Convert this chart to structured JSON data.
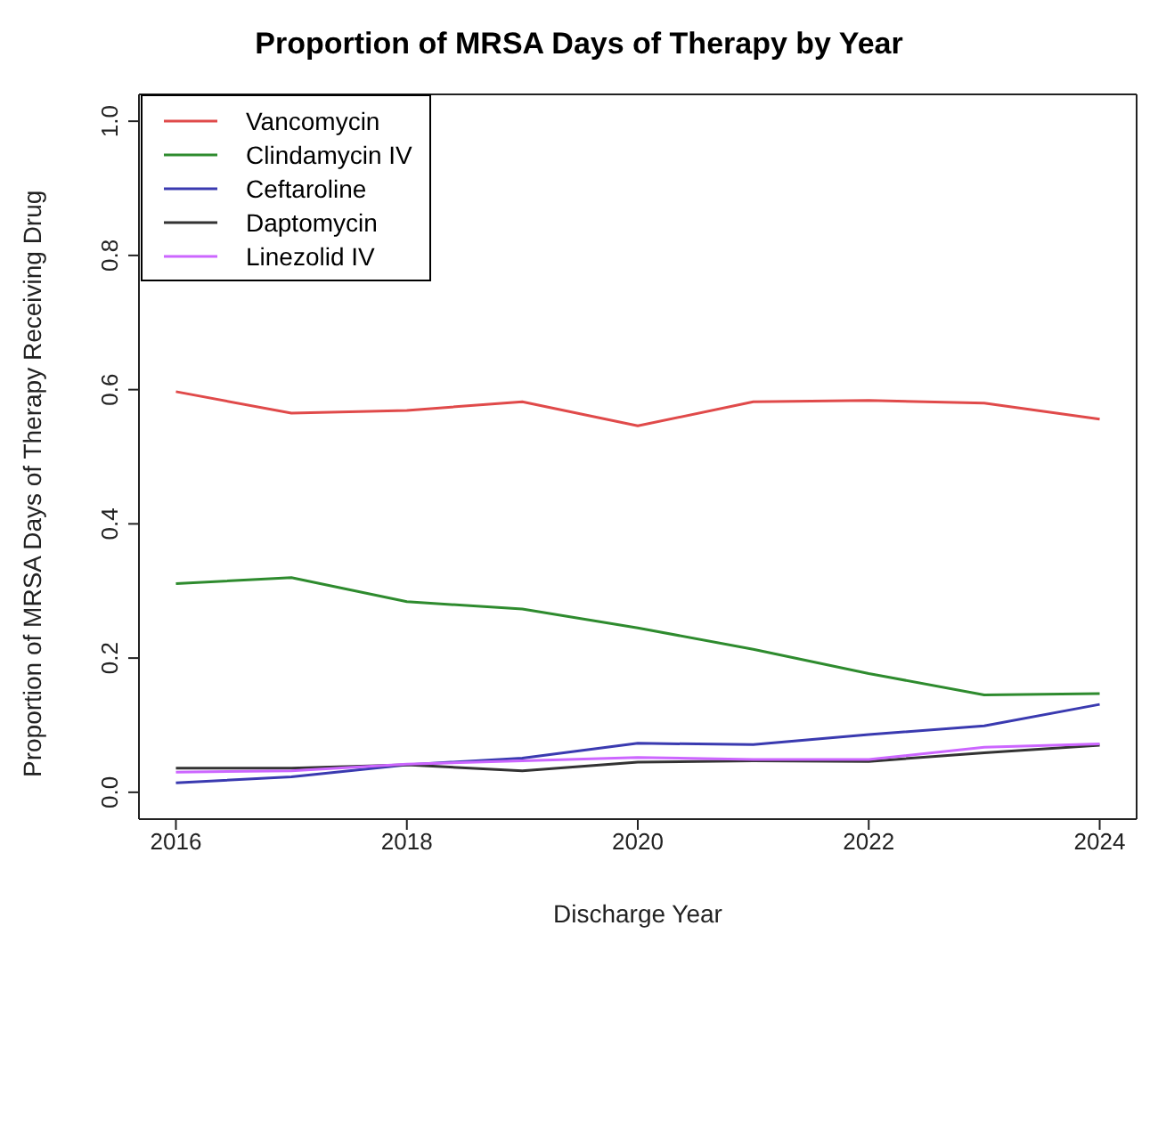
{
  "chart_data": {
    "type": "line",
    "title": "Proportion of MRSA Days of Therapy by Year",
    "xlabel": "Discharge Year",
    "ylabel": "Proportion of MRSA Days of Therapy Receiving Drug",
    "x": [
      2016,
      2017,
      2018,
      2019,
      2020,
      2021,
      2022,
      2023,
      2024
    ],
    "xlim": [
      2015.68,
      2024.32
    ],
    "xticks": [
      2016,
      2018,
      2020,
      2022,
      2024
    ],
    "ylim": [
      -0.04,
      1.04
    ],
    "yticks": [
      {
        "value": 0,
        "label": "0.0"
      },
      {
        "value": 0.2,
        "label": "0.2"
      },
      {
        "value": 0.4,
        "label": "0.4"
      },
      {
        "value": 0.6,
        "label": "0.6"
      },
      {
        "value": 0.8,
        "label": "0.8"
      },
      {
        "value": 1,
        "label": "1.0"
      }
    ],
    "grid": false,
    "legend": "top left",
    "marker": "none",
    "line_style": "solid",
    "series": [
      {
        "name": "Vancomycin",
        "color": "#e04a4a",
        "values": [
          0.597,
          0.565,
          0.569,
          0.582,
          0.546,
          0.582,
          0.584,
          0.58,
          0.556
        ]
      },
      {
        "name": "Clindamycin IV",
        "color": "#2e8b2e",
        "values": [
          0.311,
          0.32,
          0.284,
          0.273,
          0.245,
          0.213,
          0.177,
          0.145,
          0.147
        ]
      },
      {
        "name": "Ceftaroline",
        "color": "#3a3ab0",
        "values": [
          0.014,
          0.023,
          0.041,
          0.051,
          0.073,
          0.071,
          0.086,
          0.099,
          0.131
        ]
      },
      {
        "name": "Daptomycin",
        "color": "#333333",
        "values": [
          0.036,
          0.036,
          0.041,
          0.032,
          0.045,
          0.047,
          0.046,
          0.059,
          0.07
        ]
      },
      {
        "name": "Linezolid IV",
        "color": "#cc66ff",
        "values": [
          0.03,
          0.032,
          0.042,
          0.047,
          0.052,
          0.049,
          0.049,
          0.067,
          0.072
        ]
      }
    ]
  }
}
